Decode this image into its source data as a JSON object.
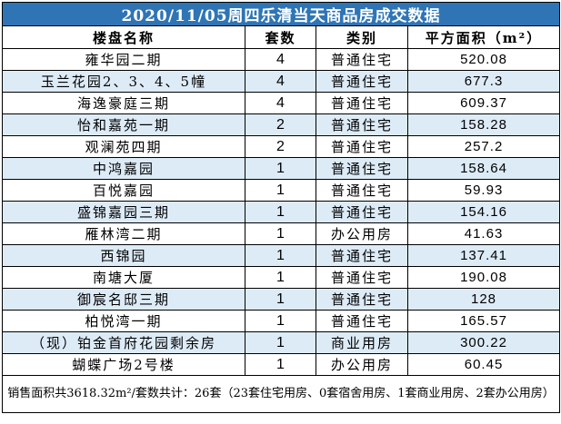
{
  "title": "2020/11/05周四乐清当天商品房成交数据",
  "headers": {
    "name": "楼盘名称",
    "count": "套数",
    "type": "类别",
    "area": "平方面积（m²）"
  },
  "rows": [
    {
      "name": "雍华园二期",
      "count": "4",
      "type": "普通住宅",
      "area": "520.08"
    },
    {
      "name": "玉兰花园2、3、4、5幢",
      "count": "4",
      "type": "普通住宅",
      "area": "677.3"
    },
    {
      "name": "海逸豪庭三期",
      "count": "4",
      "type": "普通住宅",
      "area": "609.37"
    },
    {
      "name": "怡和嘉苑一期",
      "count": "2",
      "type": "普通住宅",
      "area": "158.28"
    },
    {
      "name": "观澜苑四期",
      "count": "2",
      "type": "普通住宅",
      "area": "257.2"
    },
    {
      "name": "中鸿嘉园",
      "count": "1",
      "type": "普通住宅",
      "area": "158.64"
    },
    {
      "name": "百悦嘉园",
      "count": "1",
      "type": "普通住宅",
      "area": "59.93"
    },
    {
      "name": "盛锦嘉园三期",
      "count": "1",
      "type": "普通住宅",
      "area": "154.16"
    },
    {
      "name": "雁林湾二期",
      "count": "1",
      "type": "办公用房",
      "area": "41.63"
    },
    {
      "name": "西锦园",
      "count": "1",
      "type": "普通住宅",
      "area": "137.41"
    },
    {
      "name": "南塘大厦",
      "count": "1",
      "type": "普通住宅",
      "area": "190.08"
    },
    {
      "name": "御宸名邸三期",
      "count": "1",
      "type": "普通住宅",
      "area": "128"
    },
    {
      "name": "柏悦湾一期",
      "count": "1",
      "type": "普通住宅",
      "area": "165.57"
    },
    {
      "name": "（现）铂金首府花园剩余房",
      "count": "1",
      "type": "商业用房",
      "area": "300.22"
    },
    {
      "name": "蝴蝶广场2号楼",
      "count": "1",
      "type": "办公用房",
      "area": "60.45"
    }
  ],
  "footer": "销售面积共3618.32m²/套数共计：26套（23套住宅用房、0套宿舍用房、1套商业用房、2套办公用房）",
  "colors": {
    "title_bg": "#2f75b5",
    "title_text": "#ffffff",
    "shaded_row": "#ddebf7",
    "plain_row": "#ffffff",
    "border": "#000000"
  }
}
